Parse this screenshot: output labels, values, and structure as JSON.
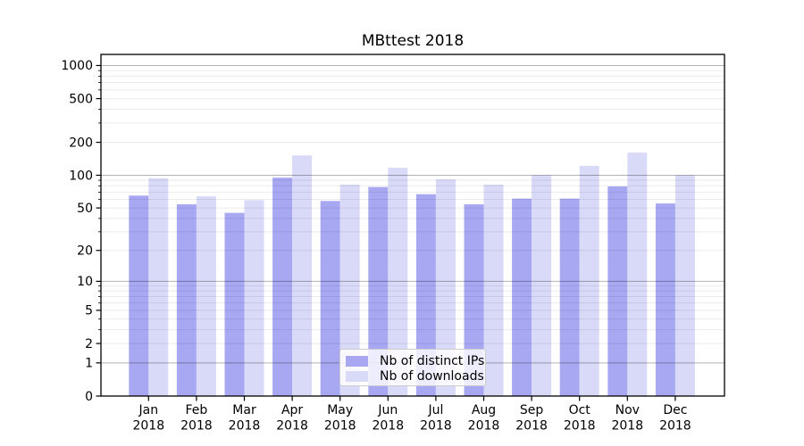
{
  "chart_data": {
    "type": "bar",
    "title": "MBttest 2018",
    "categories": [
      "Jan",
      "Feb",
      "Mar",
      "Apr",
      "May",
      "Jun",
      "Jul",
      "Aug",
      "Sep",
      "Oct",
      "Nov",
      "Dec"
    ],
    "x_year_label": "2018",
    "series": [
      {
        "name": "Nb of distinct IPs",
        "color": "#a7a7f2",
        "values": [
          65,
          54,
          45,
          95,
          58,
          78,
          67,
          54,
          61,
          61,
          79,
          55
        ]
      },
      {
        "name": "Nb of downloads",
        "color": "#d9d9f8",
        "values": [
          94,
          64,
          59,
          152,
          82,
          117,
          92,
          82,
          100,
          122,
          161,
          100
        ]
      }
    ],
    "yscale": "log(1+x)",
    "ylim": [
      0,
      1260
    ],
    "ytick_values": [
      0,
      1,
      2,
      5,
      10,
      20,
      50,
      100,
      200,
      500,
      1000
    ],
    "ytick_labels": [
      "0",
      "1",
      "2",
      "5",
      "10",
      "20",
      "50",
      "100",
      "200",
      "500",
      "1000"
    ],
    "minor_grid_values": [
      3,
      4,
      6,
      7,
      8,
      9,
      30,
      40,
      60,
      70,
      80,
      90,
      300,
      400,
      600,
      700,
      800,
      900
    ],
    "major_grid_values": [
      1,
      10,
      100,
      1000
    ],
    "grid": "horizontal, minor light + major dark, drawn above bars",
    "legend_position": "lower center"
  }
}
